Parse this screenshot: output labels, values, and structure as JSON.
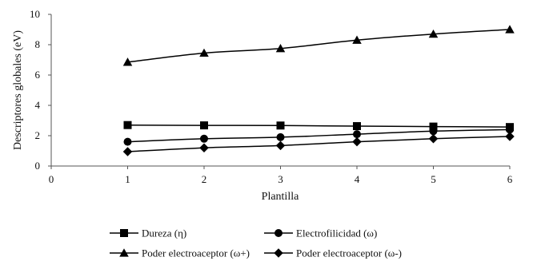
{
  "chart_data": {
    "type": "line",
    "xlabel": "Plantilla",
    "ylabel": "Descriptores globales (eV)",
    "xlim": [
      0,
      6
    ],
    "ylim": [
      0,
      10
    ],
    "xticks": [
      "0",
      "1",
      "2",
      "3",
      "4",
      "5",
      "6"
    ],
    "yticks": [
      "0",
      "2",
      "4",
      "6",
      "8",
      "10"
    ],
    "grid": false,
    "legend_position": "bottom",
    "x": [
      1,
      2,
      3,
      4,
      5,
      6
    ],
    "series": [
      {
        "name": "Dureza (η)",
        "marker": "square",
        "values": [
          2.7,
          2.68,
          2.67,
          2.63,
          2.6,
          2.57
        ]
      },
      {
        "name": "Electrofilicidad (ω)",
        "marker": "circle",
        "values": [
          1.6,
          1.8,
          1.9,
          2.1,
          2.3,
          2.4
        ]
      },
      {
        "name": "Poder electroaceptor (ω+)",
        "marker": "triangle",
        "values": [
          6.85,
          7.45,
          7.75,
          8.3,
          8.7,
          9.0
        ]
      },
      {
        "name": "Poder electroaceptor (ω-)",
        "marker": "diamond",
        "values": [
          0.95,
          1.2,
          1.35,
          1.6,
          1.8,
          1.95
        ]
      }
    ]
  }
}
